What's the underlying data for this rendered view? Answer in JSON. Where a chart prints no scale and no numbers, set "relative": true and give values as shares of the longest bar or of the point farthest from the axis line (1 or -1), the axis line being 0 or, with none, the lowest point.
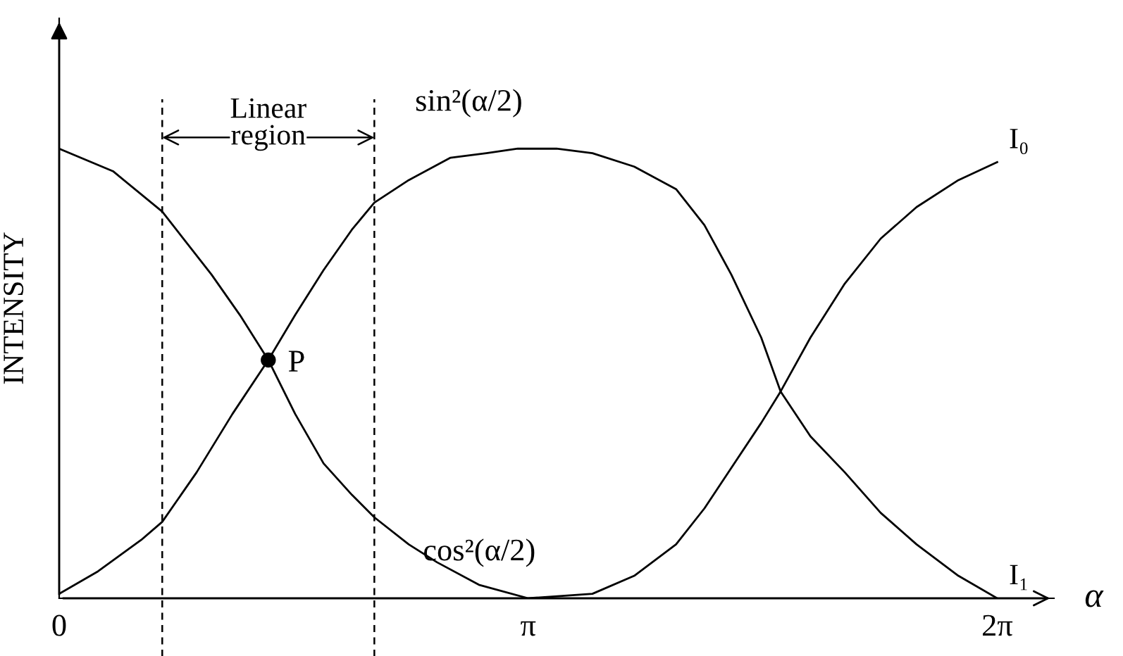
{
  "chart_data": {
    "type": "line",
    "relative": true,
    "xlabel": "α",
    "ylabel": "INTENSITY",
    "xlim": [
      0,
      6.66
    ],
    "xticks": [
      0,
      {
        "value": 3.14,
        "label": "π"
      },
      {
        "value": 6.28,
        "label": "2π"
      }
    ],
    "tick_labels": "x",
    "grid": false,
    "legend": false,
    "line_style": "solid",
    "series": [
      {
        "name": "I₁",
        "color": "#000000",
        "marker": "none",
        "x": [
          0,
          0.26,
          0.55,
          0.69,
          0.92,
          1.16,
          1.4,
          1.58,
          1.77,
          1.96,
          2.11,
          2.34,
          2.62,
          2.86,
          3.07,
          3.33,
          3.57,
          3.85,
          4.13,
          4.32,
          4.5,
          4.7,
          4.83,
          5.03,
          5.26,
          5.5,
          5.74,
          6.02,
          6.28
        ],
        "values": [
          0.01,
          0.06,
          0.13,
          0.17,
          0.28,
          0.41,
          0.53,
          0.63,
          0.73,
          0.82,
          0.88,
          0.93,
          0.98,
          0.99,
          1.0,
          1.0,
          0.99,
          0.96,
          0.91,
          0.83,
          0.72,
          0.58,
          0.46,
          0.36,
          0.28,
          0.19,
          0.12,
          0.05,
          0
        ]
      },
      {
        "name": "I₀",
        "color": "#000000",
        "marker": "none",
        "x": [
          0,
          0.36,
          0.69,
          1.02,
          1.21,
          1.4,
          1.58,
          1.77,
          1.96,
          2.11,
          2.34,
          2.53,
          2.81,
          3.14,
          3.57,
          3.85,
          4.13,
          4.32,
          4.5,
          4.7,
          4.83,
          5.03,
          5.26,
          5.5,
          5.74,
          6.02,
          6.28
        ],
        "values": [
          1.0,
          0.95,
          0.86,
          0.72,
          0.63,
          0.53,
          0.41,
          0.3,
          0.23,
          0.18,
          0.12,
          0.08,
          0.03,
          0,
          0.01,
          0.05,
          0.12,
          0.2,
          0.29,
          0.39,
          0.46,
          0.58,
          0.7,
          0.8,
          0.87,
          0.93,
          0.97
        ]
      },
      {
        "name": "P",
        "type": "scatter",
        "color": "#000000",
        "marker": "circle",
        "x": [
          1.4
        ],
        "values": [
          0.53
        ]
      }
    ],
    "ref_lines": [
      {
        "axis": "x",
        "value": 0.69,
        "label": null,
        "line_style": "dashed",
        "color": "#000000"
      },
      {
        "axis": "x",
        "value": 2.11,
        "label": null,
        "line_style": "dashed",
        "color": "#000000"
      }
    ],
    "annotations": [
      "Linear region",
      "sin²(α/2)",
      "cos²(α/2)"
    ]
  }
}
